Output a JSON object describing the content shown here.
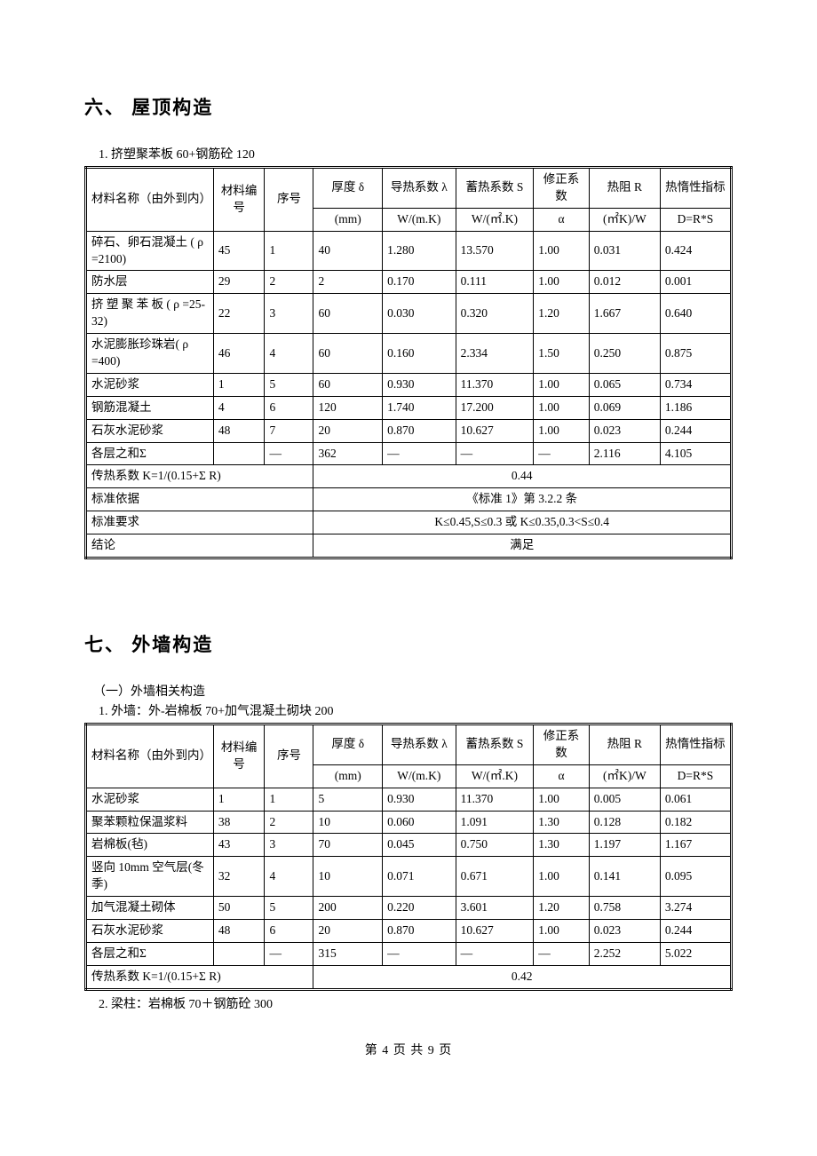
{
  "section6": {
    "heading": "六、 屋顶构造",
    "item1_title": "1.  挤塑聚苯板 60+钢筋砼 120",
    "table": {
      "head": {
        "c1": "材料名称（由外到内）",
        "c2": "材料编号",
        "c3": "序号",
        "c4a": "厚度 δ",
        "c5a": "导热系数 λ",
        "c6a": "蓄热系数 S",
        "c7a": "修正系数",
        "c8a": "热阻 R",
        "c9a": "热惰性指标",
        "c4b": "(mm)",
        "c5b": "W/(m.K)",
        "c6b": "W/(㎡.K)",
        "c7b": "α",
        "c8b": "(㎡K)/W",
        "c9b": "D=R*S"
      },
      "rows": [
        [
          "碎石、卵石混凝土 ( ρ =2100)",
          "45",
          "1",
          "40",
          "1.280",
          "13.570",
          "1.00",
          "0.031",
          "0.424"
        ],
        [
          "防水层",
          "29",
          "2",
          "2",
          "0.170",
          "0.111",
          "1.00",
          "0.012",
          "0.001"
        ],
        [
          "挤 塑 聚 苯 板 ( ρ =25-32)",
          "22",
          "3",
          "60",
          "0.030",
          "0.320",
          "1.20",
          "1.667",
          "0.640"
        ],
        [
          "水泥膨胀珍珠岩( ρ =400)",
          "46",
          "4",
          "60",
          "0.160",
          "2.334",
          "1.50",
          "0.250",
          "0.875"
        ],
        [
          "水泥砂浆",
          "1",
          "5",
          "60",
          "0.930",
          "11.370",
          "1.00",
          "0.065",
          "0.734"
        ],
        [
          "钢筋混凝土",
          "4",
          "6",
          "120",
          "1.740",
          "17.200",
          "1.00",
          "0.069",
          "1.186"
        ],
        [
          "石灰水泥砂浆",
          "48",
          "7",
          "20",
          "0.870",
          "10.627",
          "1.00",
          "0.023",
          "0.244"
        ],
        [
          "各层之和Σ",
          "",
          "—",
          "362",
          "—",
          "—",
          "—",
          "2.116",
          "4.105"
        ]
      ],
      "summary": [
        {
          "label": "传热系数 K=1/(0.15+Σ R)",
          "value": "0.44"
        },
        {
          "label": "标准依据",
          "value": "《标准 1》第 3.2.2 条"
        },
        {
          "label": "标准要求",
          "value": "K≤0.45,S≤0.3 或 K≤0.35,0.3<S≤0.4"
        },
        {
          "label": "结论",
          "value": "满足"
        }
      ]
    }
  },
  "section7": {
    "heading": "七、 外墙构造",
    "sub1": "（一）外墙相关构造",
    "item1_title": "1.  外墙：外-岩棉板 70+加气混凝土砌块 200",
    "table": {
      "head": {
        "c1": "材料名称（由外到内）",
        "c2": "材料编号",
        "c3": "序号",
        "c4a": "厚度 δ",
        "c5a": "导热系数 λ",
        "c6a": "蓄热系数 S",
        "c7a": "修正系数",
        "c8a": "热阻 R",
        "c9a": "热惰性指标",
        "c4b": "(mm)",
        "c5b": "W/(m.K)",
        "c6b": "W/(㎡.K)",
        "c7b": "α",
        "c8b": "(㎡K)/W",
        "c9b": "D=R*S"
      },
      "rows": [
        [
          "水泥砂浆",
          "1",
          "1",
          "5",
          "0.930",
          "11.370",
          "1.00",
          "0.005",
          "0.061"
        ],
        [
          "聚苯颗粒保温浆料",
          "38",
          "2",
          "10",
          "0.060",
          "1.091",
          "1.30",
          "0.128",
          "0.182"
        ],
        [
          "岩棉板(毡)",
          "43",
          "3",
          "70",
          "0.045",
          "0.750",
          "1.30",
          "1.197",
          "1.167"
        ],
        [
          "竖向 10mm 空气层(冬季)",
          "32",
          "4",
          "10",
          "0.071",
          "0.671",
          "1.00",
          "0.141",
          "0.095"
        ],
        [
          "加气混凝土砌体",
          "50",
          "5",
          "200",
          "0.220",
          "3.601",
          "1.20",
          "0.758",
          "3.274"
        ],
        [
          "石灰水泥砂浆",
          "48",
          "6",
          "20",
          "0.870",
          "10.627",
          "1.00",
          "0.023",
          "0.244"
        ],
        [
          "各层之和Σ",
          "",
          "—",
          "315",
          "—",
          "—",
          "—",
          "2.252",
          "5.022"
        ]
      ],
      "summary": [
        {
          "label": "传热系数 K=1/(0.15+Σ R)",
          "value": "0.42"
        }
      ]
    },
    "item2_title": "2.  梁柱：岩棉板 70＋钢筋砼 300"
  },
  "footer": "第 4 页 共 9 页"
}
